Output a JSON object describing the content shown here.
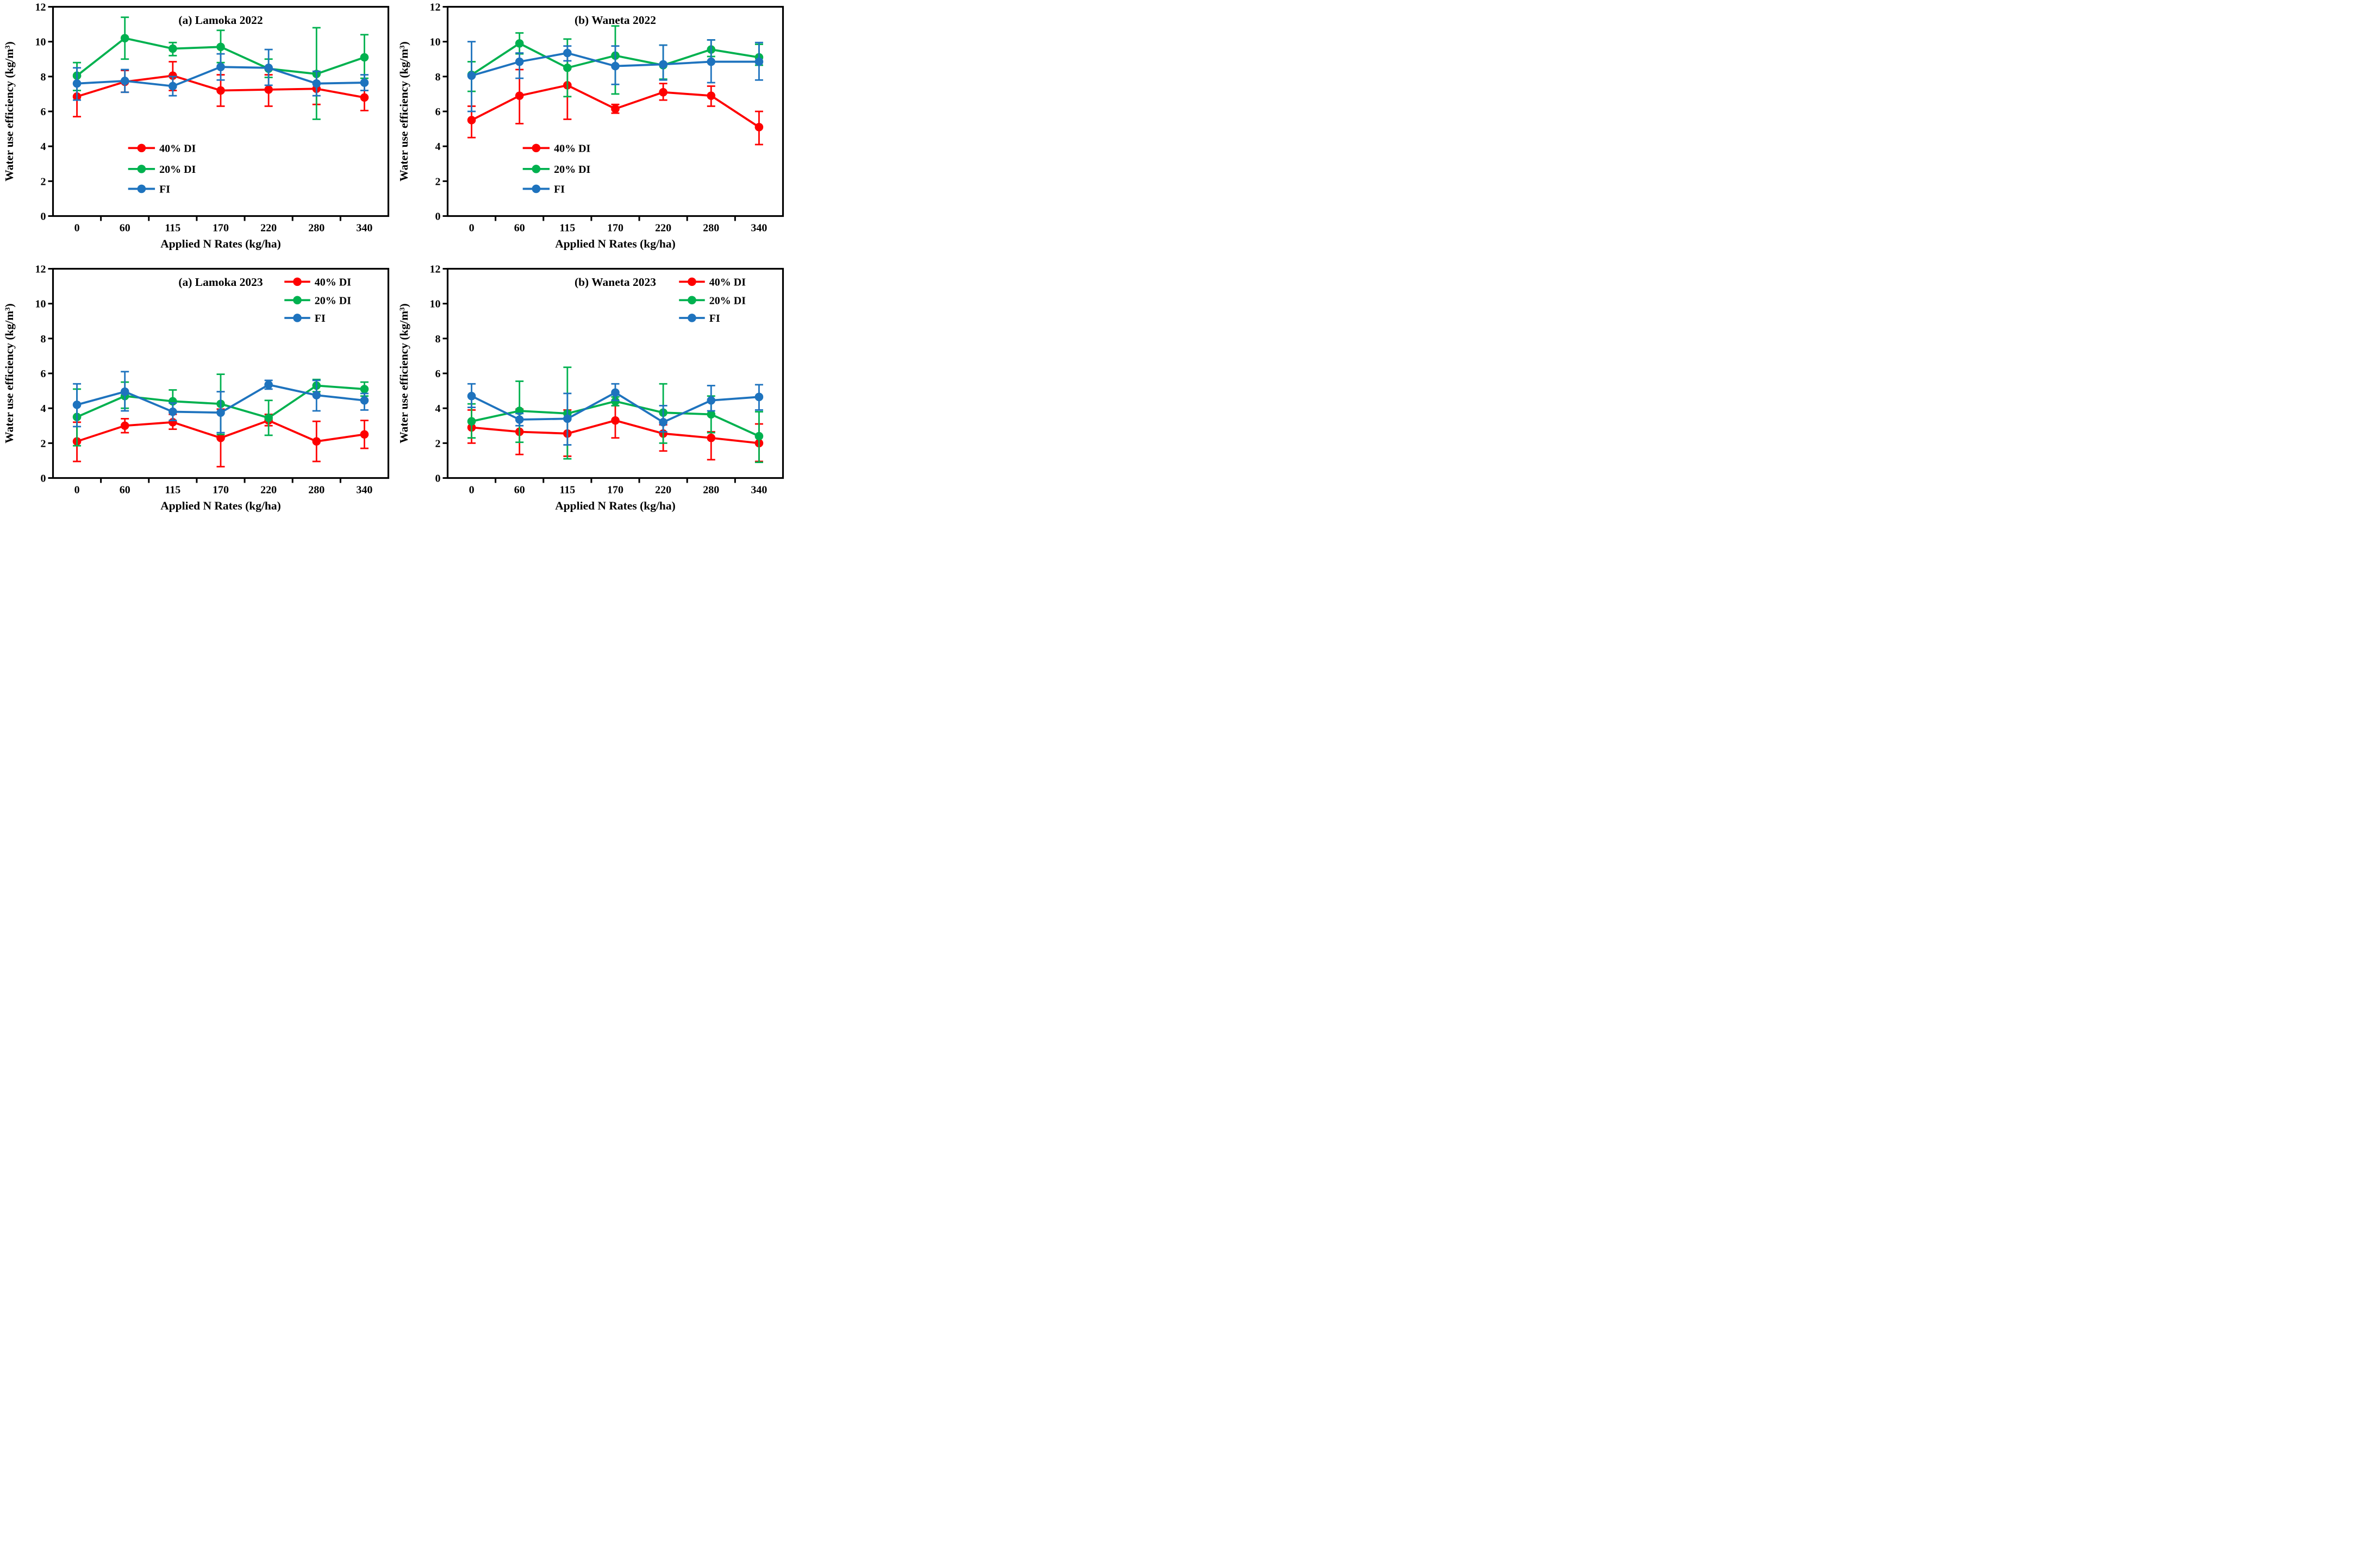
{
  "figure": {
    "background": "#ffffff",
    "axis_color": "#000000",
    "series_colors": {
      "red": "#fe0000",
      "green": "#00b14f",
      "blue": "#1e73be"
    }
  },
  "chart_data": [
    {
      "type": "line",
      "title": "(a) Lamoka 2022",
      "xlabel": "Applied N Rates (kg/ha)",
      "ylabel": "Water use efficiency (kg/m³)",
      "categories": [
        "0",
        "60",
        "115",
        "170",
        "220",
        "280",
        "340"
      ],
      "ylim": [
        0,
        12
      ],
      "yticks": [
        0,
        2,
        4,
        6,
        8,
        10,
        12
      ],
      "grid": false,
      "legend_position": "inner-left-lower",
      "series": [
        {
          "name": "40% DI",
          "color_key": "red",
          "values": [
            6.85,
            7.7,
            8.05,
            7.2,
            7.25,
            7.3,
            6.8
          ],
          "err_lo": [
            5.7,
            7.1,
            7.2,
            6.3,
            6.3,
            6.4,
            6.05
          ],
          "err_hi": [
            8.0,
            8.35,
            8.85,
            8.1,
            8.1,
            8.15,
            7.6
          ]
        },
        {
          "name": "20% DI",
          "color_key": "green",
          "values": [
            8.05,
            10.2,
            9.6,
            9.7,
            8.45,
            8.15,
            9.1
          ],
          "err_lo": [
            7.2,
            9.0,
            9.2,
            8.8,
            7.95,
            5.55,
            7.9
          ],
          "err_hi": [
            8.8,
            11.4,
            9.95,
            10.65,
            9.0,
            10.8,
            10.4
          ]
        },
        {
          "name": "FI",
          "color_key": "blue",
          "values": [
            7.6,
            7.75,
            7.45,
            8.55,
            8.5,
            7.6,
            7.65
          ],
          "err_lo": [
            6.65,
            7.1,
            6.9,
            7.8,
            7.5,
            6.9,
            7.2
          ],
          "err_hi": [
            8.5,
            8.4,
            8.0,
            9.3,
            9.55,
            8.3,
            8.1
          ]
        }
      ]
    },
    {
      "type": "line",
      "title": "(b) Waneta 2022",
      "xlabel": "Applied N Rates (kg/ha)",
      "ylabel": "Water use efficiency (kg/m³)",
      "categories": [
        "0",
        "60",
        "115",
        "170",
        "220",
        "280",
        "340"
      ],
      "ylim": [
        0,
        12
      ],
      "yticks": [
        0,
        2,
        4,
        6,
        8,
        10,
        12
      ],
      "grid": false,
      "legend_position": "inner-left-lower",
      "series": [
        {
          "name": "40% DI",
          "color_key": "red",
          "values": [
            5.5,
            6.9,
            7.5,
            6.15,
            7.1,
            6.9,
            5.1
          ],
          "err_lo": [
            4.5,
            5.3,
            5.55,
            5.9,
            6.65,
            6.3,
            4.1
          ],
          "err_hi": [
            6.3,
            8.4,
            9.35,
            6.4,
            7.6,
            7.45,
            6.0
          ]
        },
        {
          "name": "20% DI",
          "color_key": "green",
          "values": [
            8.1,
            9.9,
            8.5,
            9.2,
            8.65,
            9.55,
            9.1
          ],
          "err_lo": [
            7.15,
            9.3,
            6.85,
            7.0,
            7.85,
            9.15,
            8.65
          ],
          "err_hi": [
            8.85,
            10.5,
            10.15,
            10.9,
            9.8,
            10.1,
            9.85
          ]
        },
        {
          "name": "FI",
          "color_key": "blue",
          "values": [
            8.05,
            8.85,
            9.35,
            8.6,
            8.7,
            8.85,
            8.85
          ],
          "err_lo": [
            6.0,
            7.9,
            8.9,
            7.55,
            7.8,
            7.65,
            7.8
          ],
          "err_hi": [
            10.0,
            9.35,
            9.75,
            9.75,
            9.8,
            10.1,
            9.95
          ]
        }
      ]
    },
    {
      "type": "line",
      "title": "(a) Lamoka 2023",
      "xlabel": "Applied N Rates (kg/ha)",
      "ylabel": "Water use efficiency (kg/m³)",
      "categories": [
        "0",
        "60",
        "115",
        "170",
        "220",
        "280",
        "340"
      ],
      "ylim": [
        0,
        12
      ],
      "yticks": [
        0,
        2,
        4,
        6,
        8,
        10,
        12
      ],
      "grid": false,
      "legend_position": "inner-right-top",
      "series": [
        {
          "name": "40% DI",
          "color_key": "red",
          "values": [
            2.1,
            3.0,
            3.2,
            2.3,
            3.3,
            2.1,
            2.5
          ],
          "err_lo": [
            0.95,
            2.6,
            2.8,
            0.65,
            3.0,
            0.95,
            1.7
          ],
          "err_hi": [
            3.2,
            3.4,
            3.65,
            3.95,
            3.65,
            3.25,
            3.3
          ]
        },
        {
          "name": "20% DI",
          "color_key": "green",
          "values": [
            3.5,
            4.7,
            4.4,
            4.25,
            3.45,
            5.3,
            5.1
          ],
          "err_lo": [
            1.85,
            4.0,
            3.85,
            2.5,
            2.45,
            4.95,
            4.7
          ],
          "err_hi": [
            5.1,
            5.5,
            5.05,
            5.95,
            4.45,
            5.65,
            5.5
          ]
        },
        {
          "name": "FI",
          "color_key": "blue",
          "values": [
            4.2,
            4.95,
            3.8,
            3.75,
            5.35,
            4.75,
            4.45
          ],
          "err_lo": [
            2.95,
            3.85,
            3.3,
            2.6,
            5.1,
            3.85,
            3.9
          ],
          "err_hi": [
            5.4,
            6.1,
            4.3,
            4.95,
            5.6,
            5.6,
            4.85
          ]
        }
      ]
    },
    {
      "type": "line",
      "title": "(b) Waneta 2023",
      "xlabel": "Applied N Rates (kg/ha)",
      "ylabel": "Water use efficiency (kg/m³)",
      "categories": [
        "0",
        "60",
        "115",
        "170",
        "220",
        "280",
        "340"
      ],
      "ylim": [
        0,
        12
      ],
      "yticks": [
        0,
        2,
        4,
        6,
        8,
        10,
        12
      ],
      "grid": false,
      "legend_position": "inner-right-top",
      "series": [
        {
          "name": "40% DI",
          "color_key": "red",
          "values": [
            2.9,
            2.65,
            2.55,
            3.3,
            2.55,
            2.3,
            2.0
          ],
          "err_lo": [
            2.0,
            1.35,
            1.25,
            2.3,
            1.55,
            1.05,
            0.95
          ],
          "err_hi": [
            3.9,
            3.95,
            3.9,
            4.15,
            3.05,
            2.65,
            3.1
          ]
        },
        {
          "name": "20% DI",
          "color_key": "green",
          "values": [
            3.25,
            3.85,
            3.7,
            4.4,
            3.75,
            3.65,
            2.4
          ],
          "err_lo": [
            2.3,
            2.05,
            1.1,
            4.15,
            2.0,
            2.6,
            0.9
          ],
          "err_hi": [
            4.25,
            5.55,
            6.35,
            4.65,
            5.4,
            4.7,
            3.8
          ]
        },
        {
          "name": "FI",
          "color_key": "blue",
          "values": [
            4.7,
            3.35,
            3.4,
            4.9,
            3.2,
            4.45,
            4.65
          ],
          "err_lo": [
            4.05,
            3.0,
            1.9,
            4.45,
            2.65,
            3.85,
            3.9
          ],
          "err_hi": [
            5.4,
            3.7,
            4.85,
            5.4,
            4.15,
            5.3,
            5.35
          ]
        }
      ]
    }
  ]
}
